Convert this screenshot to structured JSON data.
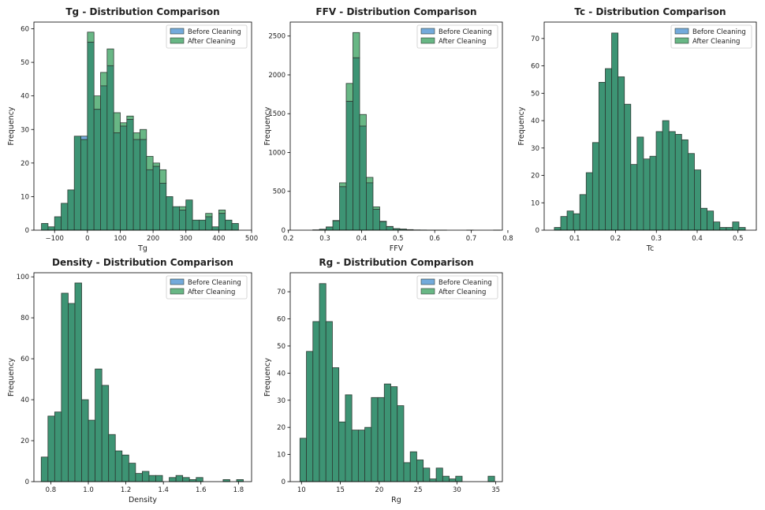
{
  "colors": {
    "before": "#5b9bd5",
    "after": "#4daa70",
    "overlap": "#3d9474",
    "edge": "#2d3a33"
  },
  "chart_data": [
    {
      "type": "bar",
      "title": "Tg - Distribution Comparison",
      "xlabel": "Tg",
      "ylabel": "Frequency",
      "legend_position": "top-right",
      "legend": [
        "Before Cleaning",
        "After Cleaning"
      ],
      "xlim": [
        -163,
        500
      ],
      "ylim": [
        0,
        62
      ],
      "xticks": [
        -100,
        0,
        100,
        200,
        300,
        400,
        500
      ],
      "xtick_labels": [
        "−100",
        "0",
        "100",
        "200",
        "300",
        "400",
        "500"
      ],
      "yticks": [
        0,
        10,
        20,
        30,
        40,
        50,
        60
      ],
      "ytick_labels": [
        "0",
        "10",
        "20",
        "30",
        "40",
        "50",
        "60"
      ],
      "bin_start": -140,
      "bin_width": 20,
      "series": [
        {
          "name": "Before Cleaning",
          "values": [
            2,
            1,
            4,
            8,
            12,
            28,
            28,
            56,
            36,
            43,
            49,
            29,
            31,
            33,
            27,
            27,
            18,
            19,
            14,
            10,
            7,
            6,
            9,
            3,
            3,
            4,
            1,
            5,
            3,
            2
          ]
        },
        {
          "name": "After Cleaning",
          "values": [
            2,
            1,
            4,
            8,
            12,
            28,
            27,
            59,
            40,
            47,
            54,
            35,
            32,
            34,
            29,
            30,
            22,
            20,
            18,
            10,
            7,
            7,
            9,
            3,
            3,
            5,
            1,
            6,
            3,
            2
          ]
        }
      ]
    },
    {
      "type": "bar",
      "title": "FFV - Distribution Comparison",
      "xlabel": "FFV",
      "ylabel": "Frequency",
      "legend_position": "top-right",
      "legend": [
        "Before Cleaning",
        "After Cleaning"
      ],
      "xlim": [
        0.205,
        0.785
      ],
      "ylim": [
        0,
        2680
      ],
      "xticks": [
        0.2,
        0.3,
        0.4,
        0.5,
        0.6,
        0.7,
        0.8
      ],
      "xtick_labels": [
        "0.2",
        "0.3",
        "0.4",
        "0.5",
        "0.6",
        "0.7",
        "0.8"
      ],
      "yticks": [
        0,
        500,
        1000,
        1500,
        2000,
        2500
      ],
      "ytick_labels": [
        "0",
        "500",
        "1000",
        "1500",
        "2000",
        "2500"
      ],
      "bin_start": 0.23,
      "bin_width": 0.0183,
      "series": [
        {
          "name": "Before Cleaning",
          "values": [
            0,
            0,
            4,
            12,
            40,
            120,
            560,
            1660,
            2220,
            1340,
            610,
            270,
            110,
            45,
            18,
            12,
            6,
            3,
            2,
            1,
            1,
            1,
            0,
            0,
            0,
            1,
            0,
            0,
            0,
            1
          ]
        },
        {
          "name": "After Cleaning",
          "values": [
            0,
            0,
            4,
            12,
            42,
            125,
            610,
            1890,
            2545,
            1490,
            680,
            300,
            115,
            48,
            20,
            14,
            7,
            3,
            2,
            1,
            1,
            1,
            0,
            0,
            0,
            1,
            0,
            0,
            0,
            1
          ]
        }
      ]
    },
    {
      "type": "bar",
      "title": "Tc - Distribution Comparison",
      "xlabel": "Tc",
      "ylabel": "Frequency",
      "legend_position": "top-right",
      "legend": [
        "Before Cleaning",
        "After Cleaning"
      ],
      "xlim": [
        0.025,
        0.545
      ],
      "ylim": [
        0,
        76
      ],
      "xticks": [
        0.1,
        0.2,
        0.3,
        0.4,
        0.5
      ],
      "xtick_labels": [
        "0.1",
        "0.2",
        "0.3",
        "0.4",
        "0.5"
      ],
      "yticks": [
        0,
        10,
        20,
        30,
        40,
        50,
        60,
        70
      ],
      "ytick_labels": [
        "0",
        "10",
        "20",
        "30",
        "40",
        "50",
        "60",
        "70"
      ],
      "bin_start": 0.05,
      "bin_width": 0.0156,
      "series": [
        {
          "name": "Before Cleaning",
          "values": [
            1,
            5,
            7,
            6,
            13,
            21,
            32,
            54,
            59,
            72,
            56,
            46,
            24,
            34,
            26,
            27,
            36,
            40,
            36,
            35,
            33,
            28,
            22,
            8,
            7,
            3,
            1,
            1,
            3,
            1
          ]
        },
        {
          "name": "After Cleaning",
          "values": [
            1,
            5,
            7,
            6,
            13,
            21,
            32,
            54,
            59,
            72,
            56,
            46,
            24,
            34,
            26,
            27,
            36,
            40,
            36,
            35,
            33,
            28,
            22,
            8,
            7,
            3,
            1,
            1,
            3,
            1
          ]
        }
      ]
    },
    {
      "type": "bar",
      "title": "Density - Distribution Comparison",
      "xlabel": "Density",
      "ylabel": "Frequency",
      "legend_position": "top-right",
      "legend": [
        "Before Cleaning",
        "After Cleaning"
      ],
      "xlim": [
        0.71,
        1.87
      ],
      "ylim": [
        0,
        102
      ],
      "xticks": [
        0.8,
        1.0,
        1.2,
        1.4,
        1.6,
        1.8
      ],
      "xtick_labels": [
        "0.8",
        "1.0",
        "1.2",
        "1.4",
        "1.6",
        "1.8"
      ],
      "yticks": [
        0,
        20,
        40,
        60,
        80,
        100
      ],
      "ytick_labels": [
        "0",
        "20",
        "40",
        "60",
        "80",
        "100"
      ],
      "bin_start": 0.749,
      "bin_width": 0.0359,
      "series": [
        {
          "name": "Before Cleaning",
          "values": [
            12,
            32,
            34,
            92,
            87,
            97,
            40,
            30,
            55,
            47,
            23,
            15,
            13,
            9,
            4,
            5,
            3,
            3,
            0,
            2,
            3,
            2,
            1,
            2,
            0,
            0,
            0,
            1,
            0,
            1
          ]
        },
        {
          "name": "After Cleaning",
          "values": [
            12,
            32,
            34,
            92,
            87,
            97,
            40,
            30,
            55,
            47,
            23,
            15,
            13,
            9,
            4,
            5,
            3,
            3,
            0,
            2,
            3,
            2,
            1,
            2,
            0,
            0,
            0,
            1,
            0,
            1
          ]
        }
      ]
    },
    {
      "type": "bar",
      "title": "Rg - Distribution Comparison",
      "xlabel": "Rg",
      "ylabel": "Frequency",
      "legend_position": "top-right",
      "legend": [
        "Before Cleaning",
        "After Cleaning"
      ],
      "xlim": [
        8.55,
        35.85
      ],
      "ylim": [
        0,
        77
      ],
      "xticks": [
        10,
        15,
        20,
        25,
        30,
        35
      ],
      "xtick_labels": [
        "10",
        "15",
        "20",
        "25",
        "30",
        "35"
      ],
      "yticks": [
        0,
        10,
        20,
        30,
        40,
        50,
        60,
        70
      ],
      "ytick_labels": [
        "0",
        "10",
        "20",
        "30",
        "40",
        "50",
        "60",
        "70"
      ],
      "bin_start": 9.8,
      "bin_width": 0.835,
      "series": [
        {
          "name": "Before Cleaning",
          "values": [
            16,
            48,
            59,
            73,
            59,
            42,
            22,
            32,
            19,
            19,
            20,
            31,
            31,
            36,
            35,
            28,
            7,
            11,
            8,
            5,
            1,
            5,
            2,
            1,
            2,
            0,
            0,
            0,
            0,
            2
          ]
        },
        {
          "name": "After Cleaning",
          "values": [
            16,
            48,
            59,
            73,
            59,
            42,
            22,
            32,
            19,
            19,
            20,
            31,
            31,
            36,
            35,
            28,
            7,
            11,
            8,
            5,
            1,
            5,
            2,
            1,
            2,
            0,
            0,
            0,
            0,
            2
          ]
        }
      ]
    }
  ]
}
